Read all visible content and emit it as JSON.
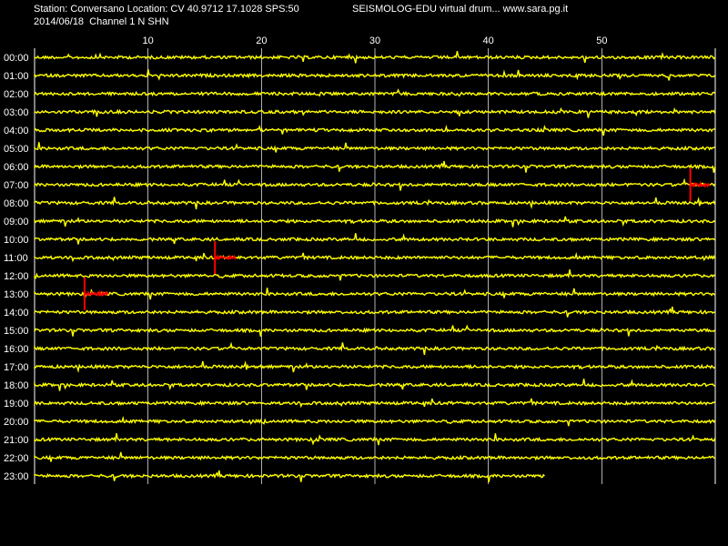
{
  "header": {
    "station_line": "Station: Conversano Location: CV 40.9712 17.1028 SPS:50",
    "app_line": "SEISMOLOG-EDU virtual drum... www.sara.pg.it",
    "date_line": "2014/06/18  Channel 1 N SHN"
  },
  "chart_data": {
    "type": "line",
    "title": "",
    "xlabel": "",
    "ylabel": "",
    "x_range": [
      0,
      60
    ],
    "x_ticks": [
      10,
      20,
      30,
      40,
      50
    ],
    "grid": true,
    "colors": {
      "background": "#000000",
      "trace": "#ffff00",
      "event": "#ff0000",
      "grid": "#ffffff",
      "text": "#ffffff"
    },
    "rows": [
      "00:00",
      "01:00",
      "02:00",
      "03:00",
      "04:00",
      "05:00",
      "06:00",
      "07:00",
      "08:00",
      "09:00",
      "10:00",
      "11:00",
      "12:00",
      "13:00",
      "14:00",
      "15:00",
      "16:00",
      "17:00",
      "18:00",
      "19:00",
      "20:00",
      "21:00",
      "22:00",
      "23:00"
    ],
    "last_row_end_minute": 45,
    "events": [
      {
        "row": "07:00",
        "start_minute": 57.8,
        "end_minute": 59.5
      },
      {
        "row": "11:00",
        "start_minute": 15.9,
        "end_minute": 17.8
      },
      {
        "row": "13:00",
        "start_minute": 4.4,
        "end_minute": 6.5
      }
    ]
  }
}
